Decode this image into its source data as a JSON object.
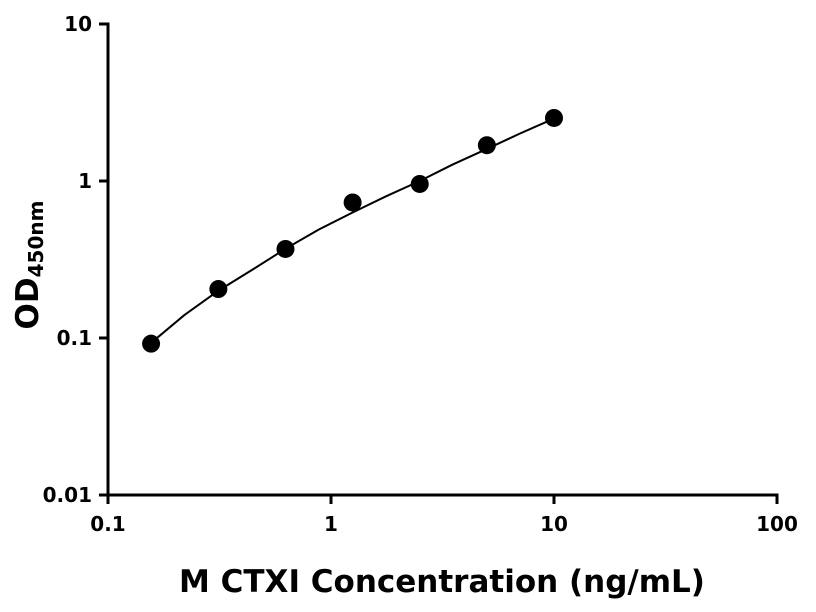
{
  "chart_data": {
    "type": "scatter",
    "x_label": "M CTXI Concentration (ng/mL)",
    "y_label": "OD",
    "y_label_subscript": "450nm",
    "xscale": "log",
    "yscale": "log",
    "xlim": [
      0.1,
      100
    ],
    "xticks": [
      0.1,
      1,
      10,
      100
    ],
    "ylim": [
      0.01,
      10
    ],
    "yticks": [
      0.01,
      0.1,
      1,
      10
    ],
    "series": [
      {
        "mode": "markers",
        "color": "#000000",
        "x": [
          0.156,
          0.3125,
          0.625,
          1.25,
          2.5,
          5,
          10
        ],
        "values": [
          0.092,
          0.205,
          0.369,
          0.73,
          0.957,
          1.69,
          2.52
        ]
      },
      {
        "mode": "line",
        "color": "#000000",
        "x": [
          0.156,
          0.22,
          0.3125,
          0.44,
          0.625,
          0.88,
          1.25,
          1.77,
          2.5,
          3.5,
          5,
          7,
          10
        ],
        "values": [
          0.093,
          0.14,
          0.2,
          0.27,
          0.37,
          0.49,
          0.63,
          0.8,
          1.0,
          1.27,
          1.6,
          2.0,
          2.5
        ]
      }
    ]
  }
}
